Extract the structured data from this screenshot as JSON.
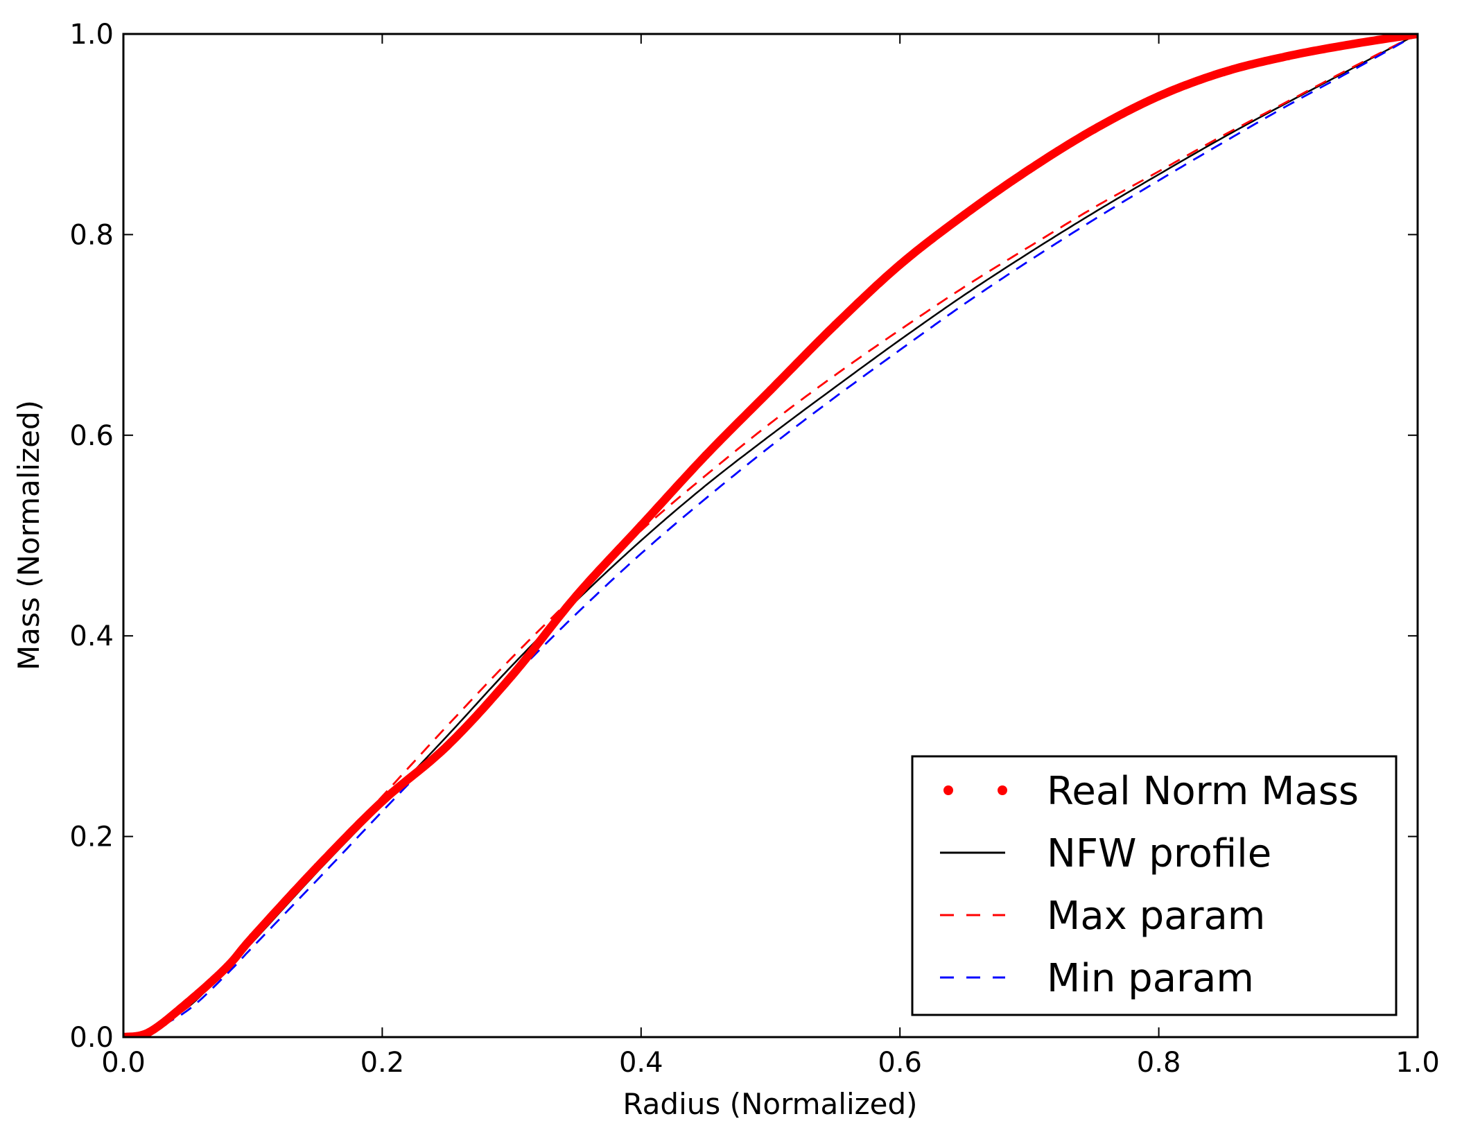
{
  "chart_data": {
    "type": "line",
    "title": "",
    "xlabel": "Radius (Normalized)",
    "ylabel": "Mass (Normalized)",
    "xlim": [
      0.0,
      1.0
    ],
    "ylim": [
      0.0,
      1.0
    ],
    "xticks": [
      "0.0",
      "0.2",
      "0.4",
      "0.6",
      "0.8",
      "1.0"
    ],
    "yticks": [
      "0.0",
      "0.2",
      "0.4",
      "0.6",
      "0.8",
      "1.0"
    ],
    "grid": false,
    "legend_position": "lower-right",
    "series": [
      {
        "name": "Real Norm Mass",
        "style": "dotted-thick",
        "color": "#ff0000",
        "x": [
          0.0,
          0.02,
          0.05,
          0.08,
          0.1,
          0.15,
          0.2,
          0.25,
          0.3,
          0.35,
          0.4,
          0.45,
          0.5,
          0.55,
          0.6,
          0.65,
          0.7,
          0.75,
          0.8,
          0.85,
          0.9,
          0.95,
          1.0
        ],
        "y": [
          0.0,
          0.005,
          0.035,
          0.07,
          0.1,
          0.17,
          0.235,
          0.29,
          0.36,
          0.44,
          0.51,
          0.58,
          0.645,
          0.71,
          0.77,
          0.82,
          0.865,
          0.905,
          0.938,
          0.962,
          0.978,
          0.99,
          1.0
        ]
      },
      {
        "name": "NFW profile",
        "style": "solid",
        "color": "#000000",
        "x": [
          0.0,
          0.02,
          0.05,
          0.08,
          0.1,
          0.15,
          0.2,
          0.25,
          0.3,
          0.35,
          0.4,
          0.45,
          0.5,
          0.55,
          0.6,
          0.65,
          0.7,
          0.75,
          0.8,
          0.85,
          0.9,
          0.95,
          1.0
        ],
        "y": [
          0.0,
          0.008,
          0.03,
          0.068,
          0.095,
          0.165,
          0.232,
          0.3,
          0.37,
          0.435,
          0.495,
          0.55,
          0.6,
          0.648,
          0.695,
          0.74,
          0.782,
          0.822,
          0.86,
          0.897,
          0.932,
          0.966,
          1.0
        ]
      },
      {
        "name": "Max param",
        "style": "dashed",
        "color": "#ff0000",
        "x": [
          0.0,
          0.02,
          0.05,
          0.08,
          0.1,
          0.15,
          0.2,
          0.25,
          0.3,
          0.35,
          0.4,
          0.45,
          0.5,
          0.55,
          0.6,
          0.65,
          0.7,
          0.75,
          0.8,
          0.85,
          0.9,
          0.95,
          1.0
        ],
        "y": [
          0.0,
          0.008,
          0.03,
          0.07,
          0.098,
          0.17,
          0.24,
          0.31,
          0.378,
          0.442,
          0.505,
          0.56,
          0.612,
          0.66,
          0.705,
          0.748,
          0.788,
          0.827,
          0.863,
          0.899,
          0.933,
          0.967,
          1.0
        ]
      },
      {
        "name": "Min param",
        "style": "dashed",
        "color": "#0000ff",
        "x": [
          0.0,
          0.02,
          0.05,
          0.08,
          0.1,
          0.15,
          0.2,
          0.25,
          0.3,
          0.35,
          0.4,
          0.45,
          0.5,
          0.55,
          0.6,
          0.65,
          0.7,
          0.75,
          0.8,
          0.85,
          0.9,
          0.95,
          1.0
        ],
        "y": [
          0.0,
          0.006,
          0.027,
          0.063,
          0.09,
          0.157,
          0.225,
          0.292,
          0.358,
          0.422,
          0.482,
          0.537,
          0.589,
          0.638,
          0.685,
          0.731,
          0.774,
          0.815,
          0.854,
          0.892,
          0.929,
          0.964,
          1.0
        ]
      }
    ]
  }
}
